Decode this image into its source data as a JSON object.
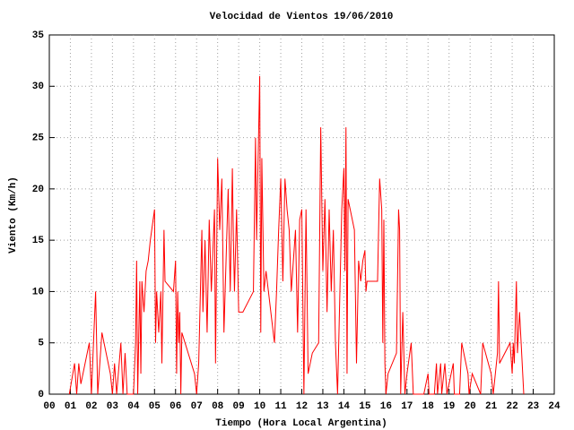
{
  "chart_data": {
    "type": "line",
    "title": "Velocidad de Vientos 19/06/2010",
    "x_label": "Tiempo (Hora Local Argentina)",
    "y_label": "Viento (Km/h)",
    "xlim": [
      0,
      24
    ],
    "ylim": [
      0,
      35
    ],
    "xticks": [
      {
        "value": 0,
        "label": "00"
      },
      {
        "value": 1,
        "label": "01"
      },
      {
        "value": 2,
        "label": "02"
      },
      {
        "value": 3,
        "label": "03"
      },
      {
        "value": 4,
        "label": "04"
      },
      {
        "value": 5,
        "label": "05"
      },
      {
        "value": 6,
        "label": "06"
      },
      {
        "value": 7,
        "label": "07"
      },
      {
        "value": 8,
        "label": "08"
      },
      {
        "value": 9,
        "label": "09"
      },
      10,
      11,
      12,
      13,
      14,
      15,
      16,
      17,
      18,
      19,
      20,
      21,
      22,
      23,
      24
    ],
    "yticks": [
      0,
      5,
      10,
      15,
      20,
      25,
      30,
      35
    ],
    "grid": true,
    "series": [
      {
        "color": "#ff0000",
        "x": [
          0.95,
          1.2,
          1.3,
          1.4,
          1.5,
          1.7,
          1.9,
          2.0,
          2.2,
          2.3,
          2.5,
          2.9,
          3.0,
          3.1,
          3.2,
          3.4,
          3.5,
          3.6,
          3.7,
          4.0,
          4.1,
          4.15,
          4.2,
          4.3,
          4.35,
          4.4,
          4.5,
          4.6,
          4.7,
          4.8,
          5.0,
          5.05,
          5.1,
          5.2,
          5.3,
          5.35,
          5.45,
          5.5,
          5.9,
          6.0,
          6.05,
          6.1,
          6.15,
          6.2,
          6.25,
          6.3,
          6.9,
          7.0,
          7.1,
          7.25,
          7.3,
          7.4,
          7.5,
          7.6,
          7.7,
          7.85,
          7.9,
          8.0,
          8.1,
          8.2,
          8.3,
          8.5,
          8.6,
          8.7,
          8.75,
          8.8,
          8.9,
          9.0,
          9.2,
          9.7,
          9.8,
          9.85,
          10.0,
          10.05,
          10.1,
          10.2,
          10.3,
          10.7,
          10.8,
          10.9,
          11.0,
          11.1,
          11.2,
          11.3,
          11.4,
          11.5,
          11.7,
          11.8,
          11.9,
          12.0,
          12.1,
          12.2,
          12.3,
          12.5,
          12.8,
          12.9,
          13.0,
          13.1,
          13.2,
          13.3,
          13.4,
          13.5,
          13.6,
          13.7,
          13.8,
          13.9,
          14.0,
          14.05,
          14.1,
          14.15,
          14.2,
          14.3,
          14.5,
          14.6,
          14.7,
          14.8,
          14.9,
          15.0,
          15.05,
          15.1,
          15.6,
          15.65,
          15.7,
          15.8,
          15.85,
          15.9,
          15.95,
          16.0,
          16.1,
          16.5,
          16.6,
          16.65,
          16.7,
          16.8,
          16.9,
          17.0,
          17.2,
          17.3,
          17.8,
          18.0,
          18.05,
          18.3,
          18.4,
          18.45,
          18.6,
          18.65,
          18.8,
          18.9,
          19.2,
          19.25,
          19.5,
          19.6,
          19.9,
          19.95,
          20.1,
          20.5,
          20.6,
          21.0,
          21.1,
          21.3,
          21.35,
          21.4,
          21.9,
          22.0,
          22.05,
          22.1,
          22.2,
          22.25,
          22.35,
          22.55
        ],
        "values": [
          0,
          3,
          0,
          3,
          1,
          3,
          5,
          0,
          10,
          0,
          6,
          2,
          0,
          3,
          0,
          5,
          0,
          4,
          0,
          0,
          5,
          13,
          0,
          11,
          2,
          11,
          8,
          12,
          13,
          15,
          18,
          5,
          10,
          6,
          10,
          3,
          16,
          11,
          10,
          13,
          2,
          10,
          5,
          8,
          0,
          6,
          2,
          0,
          3,
          16,
          8,
          15,
          6,
          17,
          10,
          18,
          3,
          23,
          16,
          21,
          6,
          20,
          10,
          22,
          15,
          10,
          18,
          8,
          8,
          10,
          25,
          15,
          31,
          6,
          23,
          10,
          12,
          5,
          10,
          16,
          21,
          11,
          21,
          18,
          16,
          10,
          16,
          6,
          17,
          18,
          0,
          18,
          2,
          4,
          5,
          26,
          12,
          19,
          8,
          18,
          10,
          16,
          5,
          0,
          9,
          18,
          22,
          12,
          26,
          2,
          19,
          18,
          16,
          3,
          13,
          11,
          13,
          14,
          10,
          11,
          11,
          16,
          21,
          18,
          5,
          17,
          3,
          0,
          2,
          4,
          18,
          16,
          0,
          8,
          0,
          2,
          5,
          0,
          0,
          2,
          0,
          0,
          3,
          0,
          3,
          0,
          3,
          0,
          3,
          0,
          0,
          5,
          2,
          0,
          2,
          0,
          5,
          2,
          0,
          4,
          11,
          3,
          5,
          2,
          5,
          3,
          11,
          4,
          8,
          0
        ]
      }
    ]
  }
}
